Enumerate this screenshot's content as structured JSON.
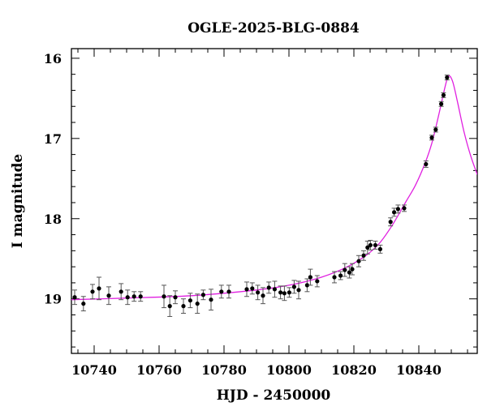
{
  "chart_data": {
    "type": "scatter",
    "title": "OGLE-2025-BLG-0884",
    "xlabel": "HJD - 2450000",
    "ylabel": "I magnitude",
    "xlim": [
      10733,
      10858
    ],
    "ylim": [
      19.68,
      15.88
    ],
    "y_inverted": true,
    "grid": false,
    "xticks": [
      10740,
      10760,
      10780,
      10800,
      10820,
      10840
    ],
    "yticks": [
      16,
      17,
      18,
      19
    ],
    "colors": {
      "points": "#000000",
      "model": "#e020e0"
    },
    "series": [
      {
        "type": "errorbar-points",
        "x": [
          10734.0,
          10736.7,
          10739.5,
          10741.5,
          10744.5,
          10748.3,
          10750.3,
          10752.3,
          10754.3,
          10761.5,
          10763.3,
          10765.0,
          10767.5,
          10769.6,
          10771.8,
          10773.6,
          10776.0,
          10779.2,
          10781.5,
          10787.0,
          10788.7,
          10790.4,
          10792.0,
          10793.8,
          10795.6,
          10797.4,
          10798.6,
          10800.1,
          10801.6,
          10803.0,
          10805.6,
          10806.6,
          10808.7,
          10814.0,
          10815.9,
          10817.2,
          10818.6,
          10819.5,
          10821.5,
          10823.0,
          10824.2,
          10825.1,
          10826.6,
          10828.1,
          10831.3,
          10832.4,
          10833.6,
          10835.5,
          10842.2,
          10844.0,
          10845.2,
          10846.9,
          10847.6,
          10848.7
        ],
        "y": [
          18.98,
          19.06,
          18.91,
          18.87,
          18.96,
          18.91,
          18.98,
          18.97,
          18.97,
          18.97,
          19.09,
          18.98,
          19.09,
          19.02,
          19.06,
          18.95,
          19.01,
          18.91,
          18.91,
          18.88,
          18.87,
          18.92,
          18.96,
          18.86,
          18.88,
          18.92,
          18.93,
          18.92,
          18.85,
          18.89,
          18.83,
          18.73,
          18.78,
          18.73,
          18.71,
          18.64,
          18.67,
          18.63,
          18.53,
          18.46,
          18.36,
          18.33,
          18.33,
          18.38,
          18.04,
          17.92,
          17.88,
          17.87,
          17.32,
          16.99,
          16.89,
          16.57,
          16.46,
          16.24
        ],
        "yerr": [
          0.09,
          0.09,
          0.09,
          0.14,
          0.11,
          0.1,
          0.09,
          0.06,
          0.06,
          0.14,
          0.13,
          0.08,
          0.09,
          0.09,
          0.12,
          0.06,
          0.13,
          0.08,
          0.08,
          0.09,
          0.07,
          0.09,
          0.1,
          0.07,
          0.1,
          0.08,
          0.09,
          0.06,
          0.08,
          0.11,
          0.08,
          0.1,
          0.07,
          0.07,
          0.05,
          0.08,
          0.07,
          0.07,
          0.07,
          0.06,
          0.08,
          0.06,
          0.05,
          0.05,
          0.05,
          0.05,
          0.05,
          0.04,
          0.04,
          0.03,
          0.03,
          0.03,
          0.03,
          0.03
        ]
      },
      {
        "type": "model-line",
        "x": [
          10733,
          10750,
          10770,
          10790,
          10800,
          10810,
          10818,
          10824,
          10828,
          10832,
          10836,
          10839,
          10842,
          10844,
          10846,
          10847,
          10848,
          10848.8,
          10849.5,
          10850.5,
          10852,
          10854,
          10856,
          10858
        ],
        "y": [
          19.01,
          18.99,
          18.96,
          18.89,
          18.83,
          18.73,
          18.6,
          18.45,
          18.3,
          18.07,
          17.79,
          17.58,
          17.3,
          17.06,
          16.73,
          16.55,
          16.37,
          16.25,
          16.22,
          16.3,
          16.56,
          16.93,
          17.22,
          17.45
        ]
      }
    ]
  }
}
